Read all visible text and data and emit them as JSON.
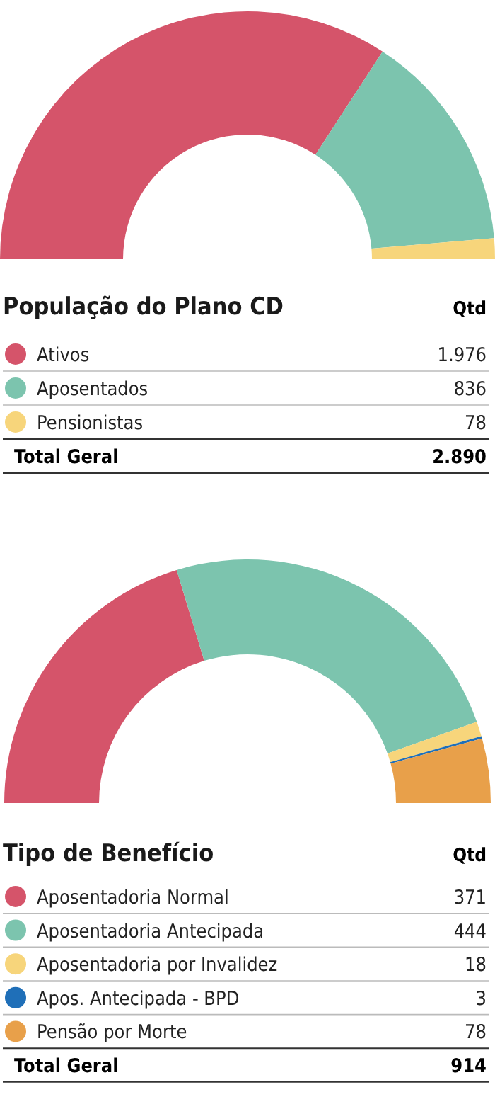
{
  "chart_data": [
    {
      "type": "donut",
      "title": "População do Plano CD",
      "legend": "bottom",
      "categories": [
        "Ativos",
        "Aposentados",
        "Pensionistas"
      ],
      "values": [
        1976,
        836,
        78
      ],
      "colors": [
        "#d5546a",
        "#7cc4ae",
        "#f7d57b"
      ],
      "value_labels": [
        "1.976",
        "836",
        "78"
      ],
      "annotations": [
        "Qtd",
        "Total Geral",
        "2.890"
      ]
    },
    {
      "type": "donut",
      "title": "Tipo de Benefício",
      "legend": "bottom",
      "categories": [
        "Aposentadoria Normal",
        "Aposentadoria Antecipada",
        "Aposentadoria por Invalidez",
        "Apos. Antecipada - BPD",
        "Pensão por Morte"
      ],
      "values": [
        371,
        444,
        18,
        3,
        78
      ],
      "colors": [
        "#d5546a",
        "#7cc4ae",
        "#f7d57b",
        "#1f6fb8",
        "#e8a04a"
      ],
      "value_labels": [
        "371",
        "444",
        "18",
        "3",
        "78"
      ],
      "annotations": [
        "Qtd",
        "Total Geral",
        "914"
      ]
    }
  ]
}
